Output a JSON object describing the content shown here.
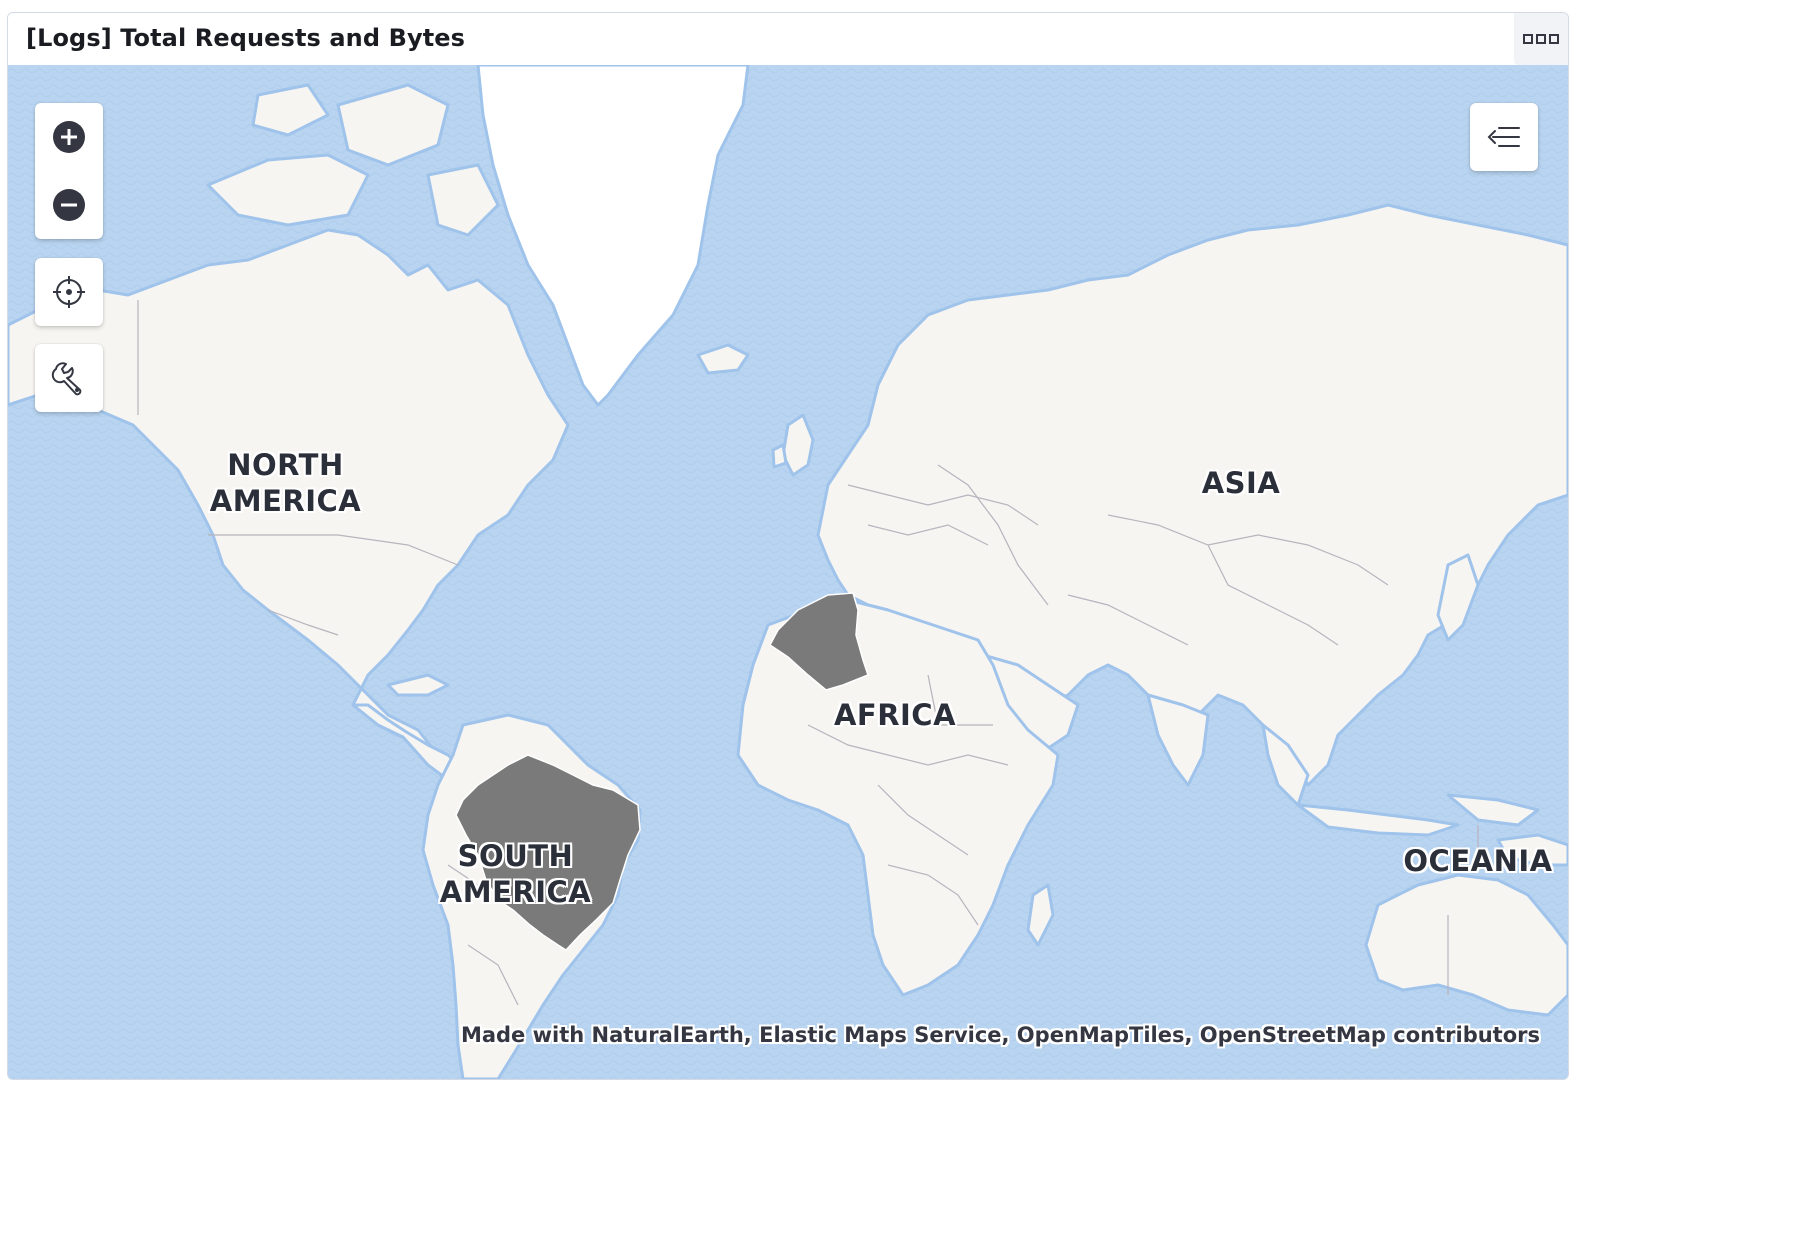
{
  "panel": {
    "title": "[Logs] Total Requests and Bytes",
    "menu_icon": "ellipsis-icon"
  },
  "map": {
    "controls": [
      {
        "name": "zoom-in",
        "icon": "plus-circle-icon"
      },
      {
        "name": "zoom-out",
        "icon": "minus-circle-icon"
      },
      {
        "name": "set-view",
        "icon": "crosshair-icon"
      },
      {
        "name": "tools",
        "icon": "wrench-icon"
      }
    ],
    "layer_toggle_icon": "layers-collapse-icon",
    "continent_labels": {
      "north_america": [
        "NORTH",
        "AMERICA"
      ],
      "south_america": [
        "SOUTH",
        "AMERICA"
      ],
      "africa": "AFRICA",
      "asia": "ASIA",
      "oceania": "OCEANIA"
    },
    "highlighted_countries": [
      "Algeria",
      "Brazil"
    ],
    "colors": {
      "water": "#b8d4f0",
      "land": "#f7f5f2",
      "highlight": "#7a7a7a",
      "coast": "#9fc3ea",
      "border": "#b7b4bd"
    },
    "attribution": "Made with NaturalEarth, Elastic Maps Service, OpenMapTiles, OpenStreetMap contributors"
  }
}
